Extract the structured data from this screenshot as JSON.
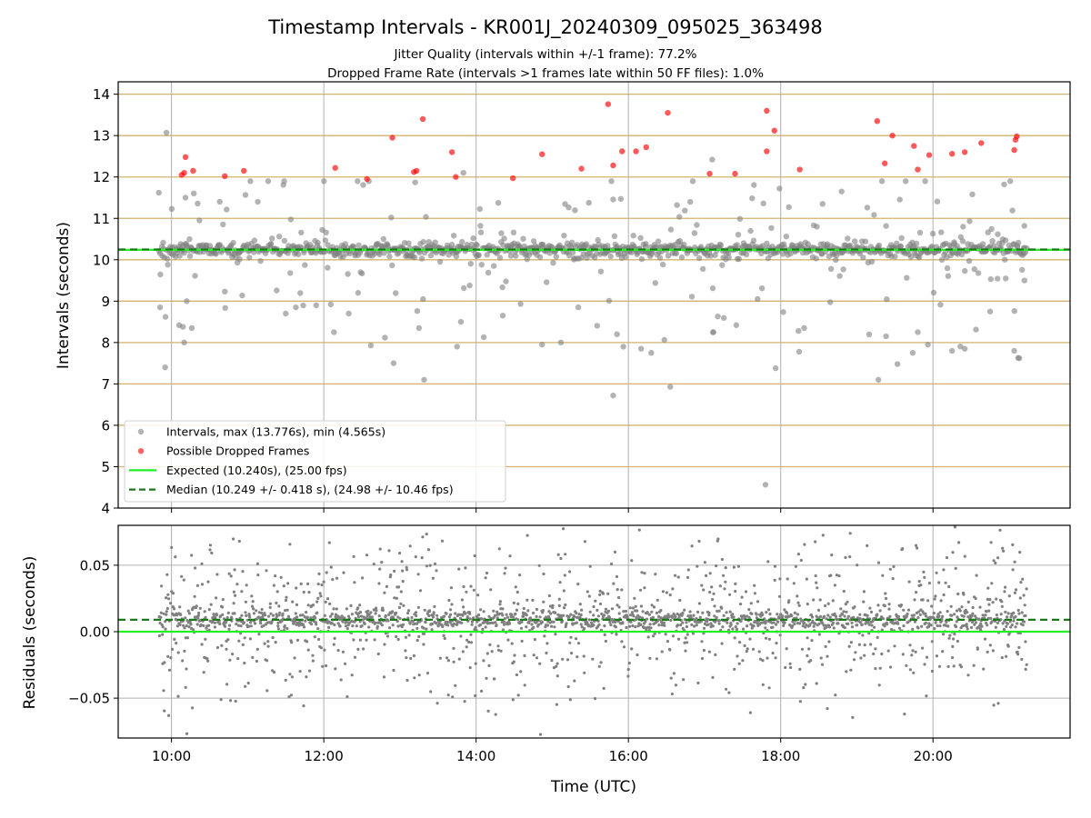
{
  "figure": {
    "title": "Timestamp Intervals - KR001J_20240309_095025_363498",
    "subtitle_1": "Jitter Quality (intervals within +/-1 frame): 77.2%",
    "subtitle_2": "Dropped Frame Rate (intervals >1 frames late within 50 FF files): 1.0%",
    "xlabel": "Time (UTC)"
  },
  "colors": {
    "intervals": "#808080",
    "dropped": "#ff0000",
    "expected": "#22ee22",
    "median": "#1a7a1a",
    "hgrid_top": "#d2b46e",
    "grid": "#b0b0b0"
  },
  "chart_data": [
    {
      "type": "scatter",
      "ylabel": "Intervals (seconds)",
      "xlim": [
        "09:18",
        "21:48"
      ],
      "ylim": [
        4,
        14.3
      ],
      "x_ticks": [
        "10:00",
        "12:00",
        "14:00",
        "16:00",
        "18:00",
        "20:00"
      ],
      "y_ticks": [
        "4",
        "5",
        "6",
        "7",
        "8",
        "9",
        "10",
        "11",
        "12",
        "13",
        "14"
      ],
      "legend_position": "lower-left",
      "legend": [
        {
          "label": "Intervals, max (13.776s), min (4.565s)",
          "marker": "dot",
          "color": "#808080"
        },
        {
          "label": "Possible Dropped Frames",
          "marker": "dot",
          "color": "#ff0000"
        },
        {
          "label": "Expected (10.240s), (25.00 fps)",
          "marker": "line",
          "color": "#22ee22"
        },
        {
          "label": "Median (10.249 +/- 0.418 s), (24.98 +/- 10.46 fps)",
          "marker": "dashed",
          "color": "#1a7a1a"
        }
      ],
      "expected": 10.24,
      "median": 10.249,
      "time_range": [
        "09:50",
        "21:14"
      ],
      "dropped_frames": [
        {
          "x": "10:08",
          "y": 12.05
        },
        {
          "x": "10:10",
          "y": 12.1
        },
        {
          "x": "10:11",
          "y": 12.48
        },
        {
          "x": "10:17",
          "y": 12.15
        },
        {
          "x": "10:42",
          "y": 12.02
        },
        {
          "x": "10:57",
          "y": 12.15
        },
        {
          "x": "12:09",
          "y": 12.22
        },
        {
          "x": "12:34",
          "y": 11.95
        },
        {
          "x": "12:54",
          "y": 12.95
        },
        {
          "x": "13:11",
          "y": 12.12
        },
        {
          "x": "13:13",
          "y": 12.15
        },
        {
          "x": "13:18",
          "y": 13.4
        },
        {
          "x": "13:41",
          "y": 12.6
        },
        {
          "x": "13:44",
          "y": 12.0
        },
        {
          "x": "14:29",
          "y": 11.97
        },
        {
          "x": "14:52",
          "y": 12.55
        },
        {
          "x": "15:23",
          "y": 12.2
        },
        {
          "x": "15:44",
          "y": 13.76
        },
        {
          "x": "15:48",
          "y": 12.28
        },
        {
          "x": "15:55",
          "y": 12.62
        },
        {
          "x": "16:06",
          "y": 12.62
        },
        {
          "x": "16:14",
          "y": 12.72
        },
        {
          "x": "16:31",
          "y": 13.55
        },
        {
          "x": "17:04",
          "y": 12.08
        },
        {
          "x": "17:24",
          "y": 12.08
        },
        {
          "x": "17:49",
          "y": 13.6
        },
        {
          "x": "17:49",
          "y": 12.62
        },
        {
          "x": "17:55",
          "y": 13.12
        },
        {
          "x": "18:15",
          "y": 12.18
        },
        {
          "x": "19:16",
          "y": 13.35
        },
        {
          "x": "19:22",
          "y": 12.33
        },
        {
          "x": "19:28",
          "y": 13.0
        },
        {
          "x": "19:45",
          "y": 12.75
        },
        {
          "x": "19:48",
          "y": 12.18
        },
        {
          "x": "19:57",
          "y": 12.53
        },
        {
          "x": "20:15",
          "y": 12.56
        },
        {
          "x": "20:25",
          "y": 12.6
        },
        {
          "x": "20:38",
          "y": 12.82
        },
        {
          "x": "21:04",
          "y": 12.65
        },
        {
          "x": "21:05",
          "y": 12.9
        },
        {
          "x": "21:06",
          "y": 12.98
        }
      ],
      "interval_outliers": [
        {
          "x": "09:50",
          "y": 11.62
        },
        {
          "x": "09:51",
          "y": 8.85
        },
        {
          "x": "09:55",
          "y": 7.4
        },
        {
          "x": "09:56",
          "y": 13.07
        },
        {
          "x": "10:06",
          "y": 8.42
        },
        {
          "x": "10:09",
          "y": 8.38
        },
        {
          "x": "10:10",
          "y": 8.0
        },
        {
          "x": "10:11",
          "y": 11.5
        },
        {
          "x": "10:12",
          "y": 9.0
        },
        {
          "x": "10:16",
          "y": 8.35
        },
        {
          "x": "10:22",
          "y": 10.95
        },
        {
          "x": "10:38",
          "y": 11.4
        },
        {
          "x": "11:08",
          "y": 11.4
        },
        {
          "x": "11:30",
          "y": 8.7
        },
        {
          "x": "11:38",
          "y": 8.85
        },
        {
          "x": "11:54",
          "y": 8.9
        },
        {
          "x": "12:08",
          "y": 8.25
        },
        {
          "x": "12:27",
          "y": 9.2
        },
        {
          "x": "12:55",
          "y": 7.5
        },
        {
          "x": "13:12",
          "y": 11.87
        },
        {
          "x": "13:15",
          "y": 8.35
        },
        {
          "x": "13:19",
          "y": 7.1
        },
        {
          "x": "13:45",
          "y": 7.9
        },
        {
          "x": "13:48",
          "y": 8.5
        },
        {
          "x": "13:50",
          "y": 12.1
        },
        {
          "x": "14:21",
          "y": 8.65
        },
        {
          "x": "14:52",
          "y": 7.95
        },
        {
          "x": "15:48",
          "y": 6.72
        },
        {
          "x": "15:51",
          "y": 8.2
        },
        {
          "x": "15:56",
          "y": 7.9
        },
        {
          "x": "16:10",
          "y": 7.85
        },
        {
          "x": "16:18",
          "y": 7.75
        },
        {
          "x": "16:33",
          "y": 6.93
        },
        {
          "x": "17:06",
          "y": 12.42
        },
        {
          "x": "17:07",
          "y": 8.25
        },
        {
          "x": "17:25",
          "y": 8.42
        },
        {
          "x": "17:56",
          "y": 7.38
        },
        {
          "x": "17:59",
          "y": 11.72
        },
        {
          "x": "18:14",
          "y": 8.28
        },
        {
          "x": "18:48",
          "y": 11.65
        },
        {
          "x": "19:17",
          "y": 7.1
        },
        {
          "x": "19:23",
          "y": 8.15
        },
        {
          "x": "19:32",
          "y": 7.48
        },
        {
          "x": "19:44",
          "y": 7.75
        },
        {
          "x": "19:48",
          "y": 8.25
        },
        {
          "x": "19:56",
          "y": 7.95
        },
        {
          "x": "20:15",
          "y": 7.8
        },
        {
          "x": "20:25",
          "y": 7.85
        },
        {
          "x": "20:45",
          "y": 8.75
        },
        {
          "x": "20:56",
          "y": 11.82
        },
        {
          "x": "21:04",
          "y": 7.8
        },
        {
          "x": "21:07",
          "y": 7.63
        },
        {
          "x": "21:08",
          "y": 7.62
        },
        {
          "x": "17:48",
          "y": 4.565
        },
        {
          "x": "21:12",
          "y": 10.82
        },
        {
          "x": "21:12",
          "y": 9.5
        }
      ]
    },
    {
      "type": "scatter",
      "ylabel": "Residuals (seconds)",
      "ylim": [
        -0.08,
        0.08
      ],
      "y_ticks": [
        "−0.05",
        "0.00",
        "0.05"
      ],
      "x_ticks": [
        "10:00",
        "12:00",
        "14:00",
        "16:00",
        "18:00",
        "20:00"
      ],
      "zero_line": 0,
      "median_residual": 0.009,
      "time_range": [
        "09:50",
        "21:14"
      ]
    }
  ]
}
